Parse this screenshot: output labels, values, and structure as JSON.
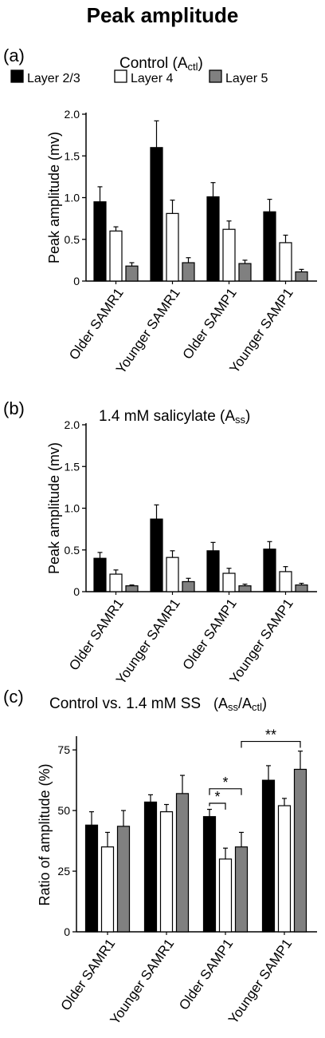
{
  "figure_title": "Peak amplitude",
  "legend": {
    "entries": [
      {
        "label": "Layer 2/3",
        "color": "#000000"
      },
      {
        "label": "Layer 4",
        "color": "#ffffff"
      },
      {
        "label": "Layer 5",
        "color": "#808080"
      }
    ]
  },
  "chart_data": [
    {
      "type": "bar",
      "panel_label": "(a)",
      "title": "Control (A",
      "title_sub": "ctl",
      "title_end": ")",
      "ylabel": "Peak amplitude (mv)",
      "ylim": [
        0,
        2.0
      ],
      "yticks": [
        "0",
        "0.5",
        "1.0",
        "1.5",
        "2.0"
      ],
      "ytick_values": [
        0,
        0.5,
        1.0,
        1.5,
        2.0
      ],
      "categories": [
        "Older SAMR1",
        "Younger SAMR1",
        "Older SAMP1",
        "Younger SAMP1"
      ],
      "series": [
        {
          "name": "Layer 2/3",
          "color": "#000000",
          "values": [
            0.95,
            1.6,
            1.01,
            0.83
          ],
          "errors": [
            0.18,
            0.32,
            0.17,
            0.15
          ]
        },
        {
          "name": "Layer 4",
          "color": "#ffffff",
          "values": [
            0.6,
            0.81,
            0.62,
            0.46
          ],
          "errors": [
            0.05,
            0.16,
            0.1,
            0.09
          ]
        },
        {
          "name": "Layer 5",
          "color": "#808080",
          "values": [
            0.18,
            0.22,
            0.21,
            0.11
          ],
          "errors": [
            0.04,
            0.06,
            0.04,
            0.03
          ]
        }
      ]
    },
    {
      "type": "bar",
      "panel_label": "(b)",
      "title": "1.4 mM salicylate (A",
      "title_sub": "ss",
      "title_end": ")",
      "ylabel": "Peak amplitude (mv)",
      "ylim": [
        0,
        2.0
      ],
      "yticks": [
        "0",
        "0.5",
        "1.0",
        "1.5",
        "2.0"
      ],
      "ytick_values": [
        0,
        0.5,
        1.0,
        1.5,
        2.0
      ],
      "categories": [
        "Older SAMR1",
        "Younger SAMR1",
        "Older SAMP1",
        "Younger SAMP1"
      ],
      "series": [
        {
          "name": "Layer 2/3",
          "color": "#000000",
          "values": [
            0.4,
            0.87,
            0.49,
            0.51
          ],
          "errors": [
            0.07,
            0.17,
            0.1,
            0.09
          ]
        },
        {
          "name": "Layer 4",
          "color": "#ffffff",
          "values": [
            0.21,
            0.41,
            0.22,
            0.24
          ],
          "errors": [
            0.05,
            0.08,
            0.06,
            0.06
          ]
        },
        {
          "name": "Layer 5",
          "color": "#808080",
          "values": [
            0.07,
            0.12,
            0.07,
            0.08
          ],
          "errors": [
            0.01,
            0.04,
            0.02,
            0.02
          ]
        }
      ]
    },
    {
      "type": "bar",
      "panel_label": "(c)",
      "title": "Control vs. 1.4 mM SS",
      "title_ratio": [
        "(A",
        "ss",
        "/A",
        "ctl",
        ")"
      ],
      "ylabel": "Ratio of amplitude (%)",
      "ylim": [
        0,
        80
      ],
      "yticks": [
        "0",
        "25",
        "50",
        "75"
      ],
      "ytick_values": [
        0,
        25,
        50,
        75
      ],
      "categories": [
        "Older SAMR1",
        "Younger SAMR1",
        "Older SAMP1",
        "Younger SAMP1"
      ],
      "series": [
        {
          "name": "Layer 2/3",
          "color": "#000000",
          "values": [
            44,
            53.5,
            47.5,
            62.5
          ],
          "errors": [
            5.5,
            3,
            3,
            6
          ]
        },
        {
          "name": "Layer 4",
          "color": "#ffffff",
          "values": [
            35,
            49.5,
            30,
            52
          ],
          "errors": [
            6,
            3,
            4.5,
            3
          ]
        },
        {
          "name": "Layer 5",
          "color": "#808080",
          "values": [
            43.5,
            57,
            35,
            67
          ],
          "errors": [
            6.5,
            7.5,
            6,
            7.5
          ]
        }
      ],
      "annotations": [
        {
          "label": "*",
          "from_group": 2,
          "from_series": 0,
          "to_group": 2,
          "to_series": 1
        },
        {
          "label": "*",
          "from_group": 2,
          "from_series": 0,
          "to_group": 2,
          "to_series": 2
        },
        {
          "label": "**",
          "from_group": 2,
          "from_series": 2,
          "to_group": 3,
          "to_series": 2
        }
      ]
    }
  ]
}
